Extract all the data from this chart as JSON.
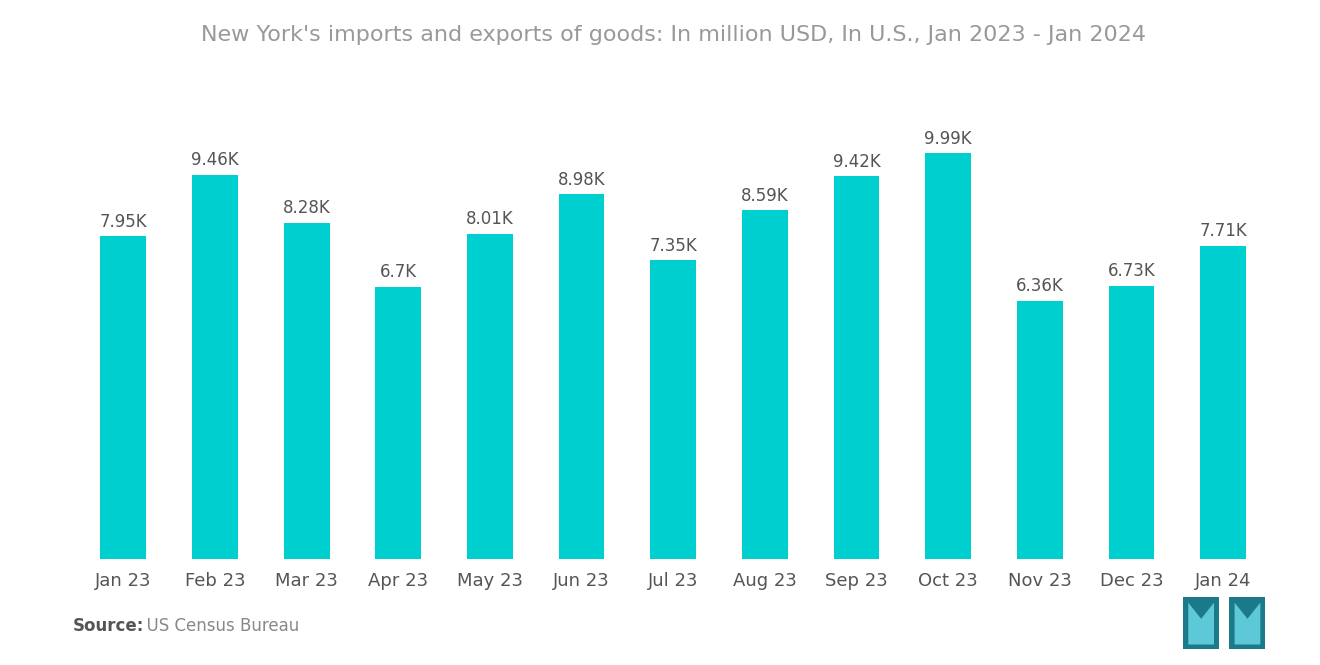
{
  "title": "New York's imports and exports of goods: In million USD, In U.S., Jan 2023 - Jan 2024",
  "categories": [
    "Jan 23",
    "Feb 23",
    "Mar 23",
    "Apr 23",
    "May 23",
    "Jun 23",
    "Jul 23",
    "Aug 23",
    "Sep 23",
    "Oct 23",
    "Nov 23",
    "Dec 23",
    "Jan 24"
  ],
  "values": [
    7950,
    9460,
    8280,
    6700,
    8010,
    8980,
    7350,
    8590,
    9420,
    9990,
    6360,
    6730,
    7710
  ],
  "labels": [
    "7.95K",
    "9.46K",
    "8.28K",
    "6.7K",
    "8.01K",
    "8.98K",
    "7.35K",
    "8.59K",
    "9.42K",
    "9.99K",
    "6.36K",
    "6.73K",
    "7.71K"
  ],
  "bar_color": "#00CFCF",
  "background_color": "#FFFFFF",
  "title_color": "#999999",
  "label_color": "#555555",
  "tick_color": "#555555",
  "source_bold": "Source:",
  "source_text": "  US Census Bureau",
  "source_fontsize": 12,
  "title_fontsize": 16,
  "label_fontsize": 12,
  "tick_fontsize": 13,
  "bar_width": 0.5,
  "ylim": [
    0,
    11800
  ]
}
